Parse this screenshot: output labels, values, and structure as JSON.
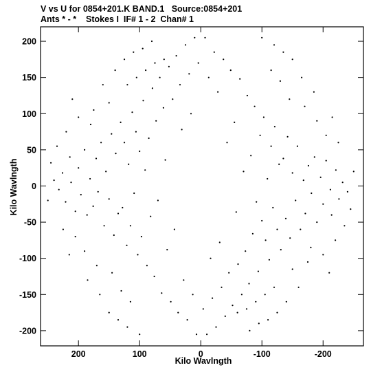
{
  "header": {
    "line1": "V vs U for 0854+201.K BAND.1   Source:0854+201",
    "line2": "Ants * - *    Stokes I  IF# 1 - 2  Chan# 1"
  },
  "chart_data": {
    "type": "scatter",
    "title": "V vs U for 0854+201.K BAND.1   Source:0854+201",
    "subtitle": "Ants * - *    Stokes I  IF# 1 - 2  Chan# 1",
    "xlabel": "Kilo Wavlngth",
    "ylabel": "Kilo Wavlngth",
    "xlim": [
      262,
      -266
    ],
    "ylim": [
      -221,
      220
    ],
    "x_reversed": true,
    "x_ticks": [
      200,
      100,
      0,
      -100,
      -200
    ],
    "x_tick_labels": [
      "200",
      "100",
      "0",
      "-100",
      "-200"
    ],
    "y_ticks": [
      200,
      150,
      100,
      50,
      0,
      -50,
      -100,
      -150,
      -200
    ],
    "y_tick_labels": [
      "200",
      "150",
      "100",
      "50",
      "0",
      "-50",
      "-100",
      "-150",
      "-200"
    ],
    "grid": false,
    "marker": "dot",
    "color": "#000000",
    "symmetric": "points appear in conjugate pairs (u,v) and (-u,-v)",
    "points": [
      [
        245,
        32
      ],
      [
        240,
        8
      ],
      [
        232,
        -5
      ],
      [
        226,
        18
      ],
      [
        221,
        -22
      ],
      [
        214,
        40
      ],
      [
        212,
        5
      ],
      [
        205,
        -35
      ],
      [
        200,
        25
      ],
      [
        196,
        -12
      ],
      [
        190,
        50
      ],
      [
        186,
        -40
      ],
      [
        181,
        10
      ],
      [
        176,
        -28
      ],
      [
        171,
        38
      ],
      [
        168,
        -8
      ],
      [
        163,
        60
      ],
      [
        158,
        -55
      ],
      [
        155,
        20
      ],
      [
        150,
        -18
      ],
      [
        146,
        72
      ],
      [
        142,
        -68
      ],
      [
        139,
        45
      ],
      [
        135,
        -38
      ],
      [
        131,
        88
      ],
      [
        128,
        -30
      ],
      [
        125,
        60
      ],
      [
        121,
        -82
      ],
      [
        118,
        30
      ],
      [
        115,
        -55
      ],
      [
        112,
        102
      ],
      [
        109,
        -10
      ],
      [
        106,
        75
      ],
      [
        103,
        -95
      ],
      [
        100,
        48
      ],
      [
        97,
        -70
      ],
      [
        94,
        118
      ],
      [
        91,
        22
      ],
      [
        88,
        -110
      ],
      [
        85,
        66
      ],
      [
        82,
        -42
      ],
      [
        79,
        135
      ],
      [
        76,
        -125
      ],
      [
        73,
        90
      ],
      [
        70,
        -20
      ],
      [
        67,
        150
      ],
      [
        64,
        -148
      ],
      [
        61,
        108
      ],
      [
        58,
        36
      ],
      [
        55,
        -88
      ],
      [
        52,
        165
      ],
      [
        49,
        -160
      ],
      [
        46,
        120
      ],
      [
        43,
        -60
      ],
      [
        40,
        180
      ],
      [
        37,
        -175
      ],
      [
        34,
        140
      ],
      [
        31,
        78
      ],
      [
        28,
        -130
      ],
      [
        25,
        195
      ],
      [
        22,
        -185
      ],
      [
        19,
        155
      ],
      [
        16,
        100
      ],
      [
        13,
        -150
      ],
      [
        10,
        205
      ],
      [
        7,
        -205
      ],
      [
        4,
        170
      ],
      [
        150,
        115
      ],
      [
        160,
        140
      ],
      [
        175,
        105
      ],
      [
        140,
        160
      ],
      [
        125,
        175
      ],
      [
        110,
        185
      ],
      [
        95,
        190
      ],
      [
        80,
        200
      ],
      [
        165,
        -150
      ],
      [
        150,
        -175
      ],
      [
        135,
        -185
      ],
      [
        120,
        -195
      ],
      [
        100,
        -205
      ],
      [
        190,
        -90
      ],
      [
        205,
        -70
      ],
      [
        215,
        -95
      ],
      [
        225,
        -60
      ],
      [
        180,
        85
      ],
      [
        200,
        95
      ],
      [
        220,
        75
      ],
      [
        235,
        55
      ],
      [
        250,
        -20
      ],
      [
        210,
        120
      ],
      [
        130,
        -145
      ],
      [
        115,
        -160
      ],
      [
        145,
        -120
      ],
      [
        170,
        -110
      ],
      [
        185,
        -130
      ],
      [
        120,
        140
      ],
      [
        105,
        150
      ],
      [
        90,
        160
      ],
      [
        75,
        170
      ],
      [
        60,
        175
      ]
    ]
  }
}
